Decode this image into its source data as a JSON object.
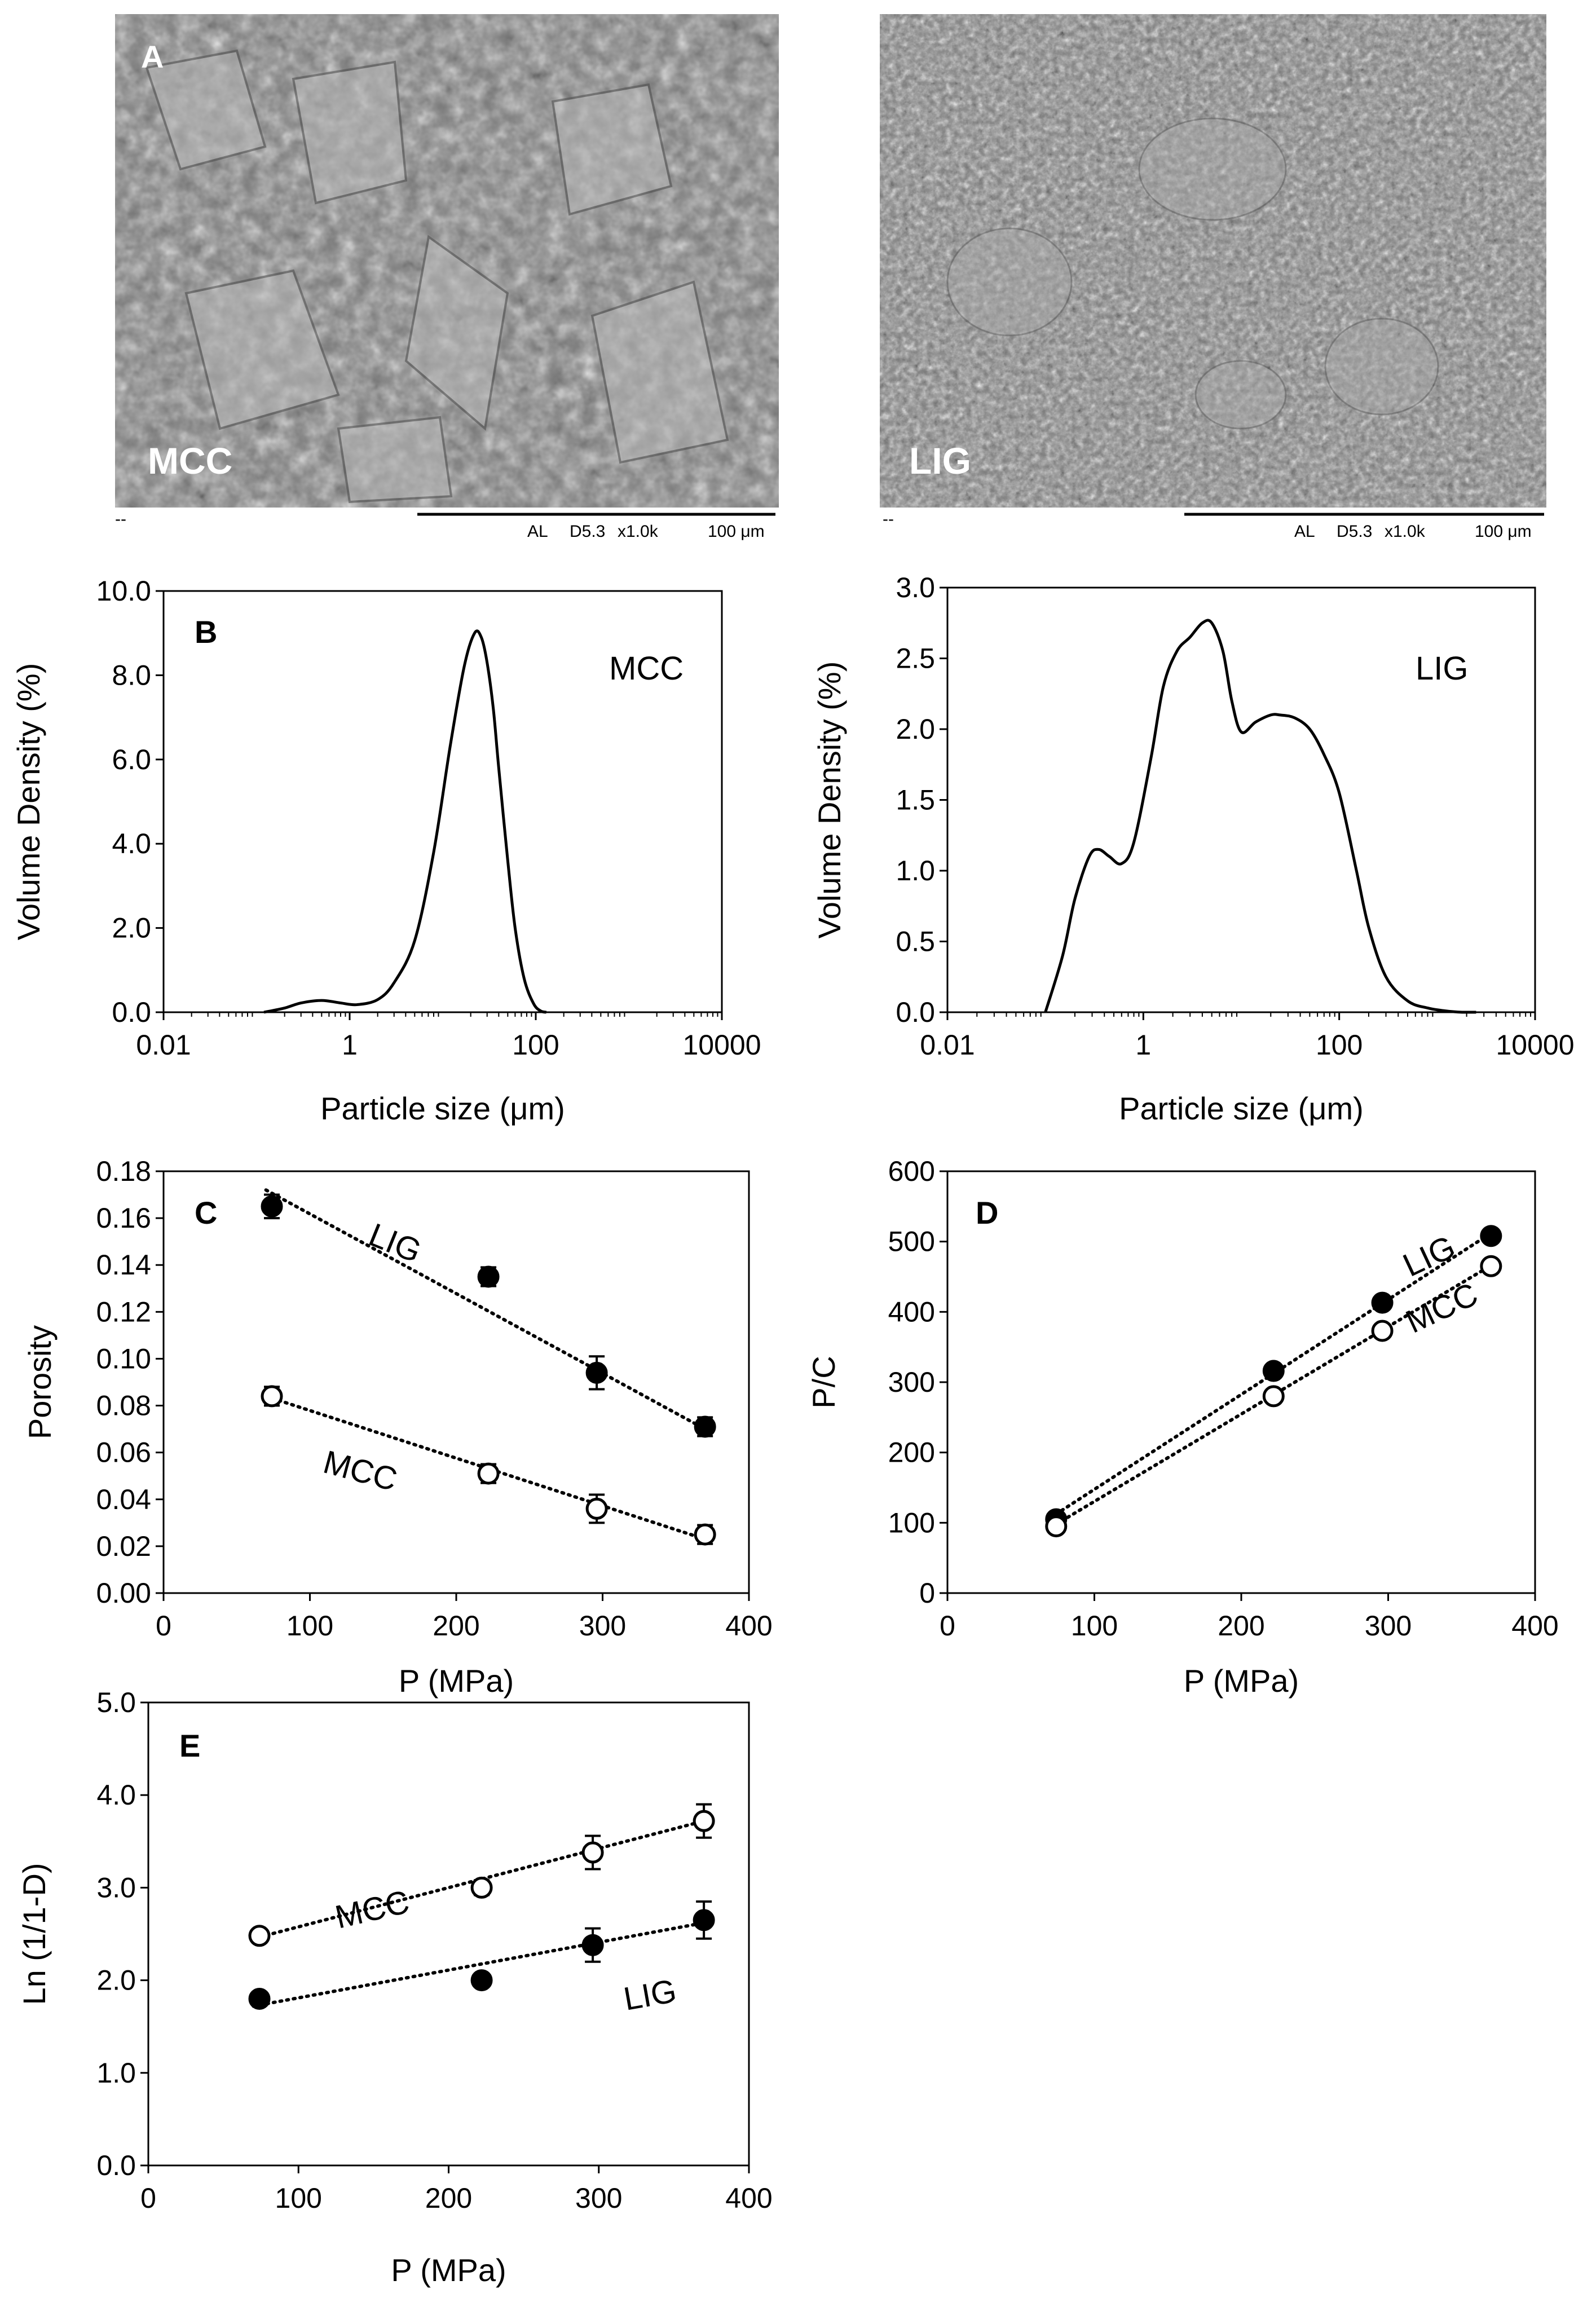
{
  "sem": {
    "panel_label": "A",
    "left_label": "MCC",
    "right_label": "LIG",
    "left_scale": [
      "AL",
      "D5.3",
      "x1.0k",
      "100 μm"
    ],
    "right_scale": [
      "AL",
      "D5.3",
      "x1.0k",
      "100 μm"
    ],
    "marker": "--"
  },
  "chart_data": [
    {
      "id": "B-left",
      "type": "line",
      "panel_label": "B",
      "annotation": "MCC",
      "xlabel": "Particle size (μm)",
      "ylabel": "Volume Density (%)",
      "xscale": "log",
      "xlim": [
        0.01,
        10000
      ],
      "ylim": [
        0,
        10
      ],
      "xticks": [
        "0.01",
        "1",
        "100",
        "10000"
      ],
      "yticks": [
        "0.0",
        "2.0",
        "4.0",
        "6.0",
        "8.0",
        "10.0"
      ],
      "x": [
        0.12,
        0.2,
        0.3,
        0.5,
        0.8,
        1.2,
        2,
        3,
        5,
        8,
        12,
        17,
        22,
        26,
        30,
        35,
        40,
        50,
        60,
        75,
        95,
        115,
        130
      ],
      "y": [
        0,
        0.1,
        0.22,
        0.28,
        0.22,
        0.18,
        0.3,
        0.7,
        1.7,
        3.8,
        6.3,
        8.2,
        9.0,
        8.9,
        8.3,
        7.2,
        5.8,
        3.6,
        2.0,
        0.8,
        0.2,
        0.02,
        0
      ]
    },
    {
      "id": "B-right",
      "type": "line",
      "annotation": "LIG",
      "xlabel": "Particle size (μm)",
      "ylabel": "Volume Density (%)",
      "xscale": "log",
      "xlim": [
        0.01,
        10000
      ],
      "ylim": [
        0,
        3
      ],
      "xticks": [
        "0.01",
        "1",
        "100",
        "10000"
      ],
      "yticks": [
        "0.0",
        "0.5",
        "1.0",
        "1.5",
        "2.0",
        "2.5",
        "3.0"
      ],
      "x": [
        0.1,
        0.15,
        0.2,
        0.28,
        0.35,
        0.45,
        0.6,
        0.8,
        1.2,
        1.6,
        2.2,
        3,
        4,
        5,
        6.5,
        8,
        10,
        14,
        20,
        25,
        35,
        50,
        70,
        100,
        150,
        200,
        300,
        500,
        800,
        1200,
        1800,
        2500
      ],
      "y": [
        0,
        0.4,
        0.8,
        1.1,
        1.15,
        1.1,
        1.05,
        1.2,
        1.8,
        2.3,
        2.55,
        2.65,
        2.75,
        2.75,
        2.55,
        2.2,
        1.98,
        2.05,
        2.1,
        2.1,
        2.08,
        2.0,
        1.82,
        1.55,
        1.0,
        0.6,
        0.25,
        0.08,
        0.03,
        0.01,
        0,
        0
      ]
    },
    {
      "id": "C",
      "type": "scatter",
      "panel_label": "C",
      "xlabel": "P (MPa)",
      "ylabel": "Porosity",
      "xlim": [
        0,
        400
      ],
      "ylim": [
        0,
        0.18
      ],
      "xticks": [
        "0",
        "100",
        "200",
        "300",
        "400"
      ],
      "yticks": [
        "0.00",
        "0.02",
        "0.04",
        "0.06",
        "0.08",
        "0.10",
        "0.12",
        "0.14",
        "0.16",
        "0.18"
      ],
      "series": [
        {
          "name": "LIG",
          "marker": "filled",
          "x": [
            74,
            222,
            296,
            370
          ],
          "y": [
            0.165,
            0.135,
            0.094,
            0.071
          ],
          "err": [
            0.005,
            0.004,
            0.007,
            0.004
          ],
          "trend": [
            [
              70,
              0.172
            ],
            [
              370,
              0.07
            ]
          ]
        },
        {
          "name": "MCC",
          "marker": "open",
          "x": [
            74,
            222,
            296,
            370
          ],
          "y": [
            0.084,
            0.051,
            0.036,
            0.025
          ],
          "err": [
            0.004,
            0.004,
            0.006,
            0.004
          ],
          "trend": [
            [
              70,
              0.084
            ],
            [
              370,
              0.023
            ]
          ]
        }
      ]
    },
    {
      "id": "D",
      "type": "scatter",
      "panel_label": "D",
      "xlabel": "P (MPa)",
      "ylabel": "P/C",
      "xlim": [
        0,
        400
      ],
      "ylim": [
        0,
        600
      ],
      "xticks": [
        "0",
        "100",
        "200",
        "300",
        "400"
      ],
      "yticks": [
        "0",
        "100",
        "200",
        "300",
        "400",
        "500",
        "600"
      ],
      "series": [
        {
          "name": "LIG",
          "marker": "filled",
          "x": [
            74,
            222,
            296,
            370
          ],
          "y": [
            105,
            316,
            413,
            508
          ],
          "err": [
            0,
            0,
            0,
            0
          ],
          "trend": [
            [
              70,
              107
            ],
            [
              370,
              512
            ]
          ]
        },
        {
          "name": "MCC",
          "marker": "open",
          "x": [
            74,
            222,
            296,
            370
          ],
          "y": [
            95,
            280,
            373,
            465
          ],
          "err": [
            0,
            0,
            0,
            0
          ],
          "trend": [
            [
              70,
              93
            ],
            [
              370,
              466
            ]
          ]
        }
      ]
    },
    {
      "id": "E",
      "type": "scatter",
      "panel_label": "E",
      "xlabel": "P (MPa)",
      "ylabel": "Ln (1/1-D)",
      "xlim": [
        0,
        400
      ],
      "ylim": [
        0,
        5
      ],
      "xticks": [
        "0",
        "100",
        "200",
        "300",
        "400"
      ],
      "yticks": [
        "0.0",
        "1.0",
        "2.0",
        "3.0",
        "4.0",
        "5.0"
      ],
      "series": [
        {
          "name": "MCC",
          "marker": "open",
          "x": [
            74,
            222,
            296,
            370
          ],
          "y": [
            2.48,
            3.0,
            3.38,
            3.72
          ],
          "err": [
            0.04,
            0.08,
            0.18,
            0.18
          ],
          "trend": [
            [
              70,
              2.45
            ],
            [
              370,
              3.72
            ]
          ]
        },
        {
          "name": "LIG",
          "marker": "filled",
          "x": [
            74,
            222,
            296,
            370
          ],
          "y": [
            1.8,
            2.0,
            2.38,
            2.65
          ],
          "err": [
            0.05,
            0.06,
            0.18,
            0.2
          ],
          "trend": [
            [
              70,
              1.72
            ],
            [
              370,
              2.62
            ]
          ]
        }
      ]
    }
  ]
}
